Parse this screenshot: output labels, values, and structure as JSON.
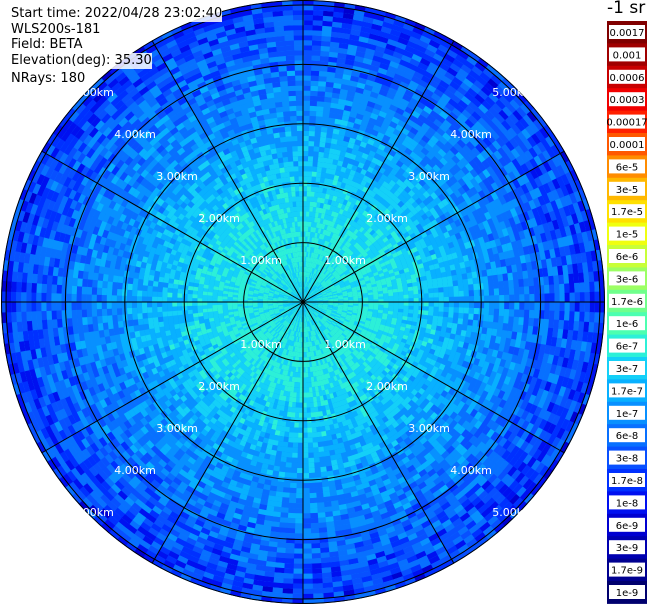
{
  "header": {
    "start_time": "Start time: 2022/04/28 23:02:40",
    "instrument": "WLS200s-181",
    "field": "Field: BETA",
    "elevation": "Elevation(deg): 35.30",
    "nrays": "NRays: 180"
  },
  "colorbar": {
    "unit_label": "-1 sr",
    "ticks": [
      "0.0017",
      "0.001",
      "0.0006",
      "0.0003",
      "0.00017",
      "0.0001",
      "6e-5",
      "3e-5",
      "1.7e-5",
      "1e-5",
      "6e-6",
      "3e-6",
      "1.7e-6",
      "1e-6",
      "6e-7",
      "3e-7",
      "1.7e-7",
      "1e-7",
      "6e-8",
      "3e-8",
      "1.7e-8",
      "1e-8",
      "6e-9",
      "3e-9",
      "1.7e-9",
      "1e-9"
    ],
    "colors": [
      "#800000",
      "#a00000",
      "#c80000",
      "#f00000",
      "#ff2000",
      "#ff5800",
      "#ff8c00",
      "#ffb800",
      "#ffe000",
      "#f0ff10",
      "#c8ff38",
      "#9cff64",
      "#70ff8c",
      "#4cffb0",
      "#2cf0d8",
      "#14d0f8",
      "#08b0ff",
      "#0890ff",
      "#0870ff",
      "#0850ff",
      "#0030ff",
      "#0010f0",
      "#0000d0",
      "#0000b0",
      "#000090",
      "#00006e"
    ]
  },
  "chart_data": {
    "type": "heatmap",
    "projection": "polar (PPI scan)",
    "field": "BETA",
    "elevation_deg": 35.3,
    "nrays": 180,
    "range_rings_km": [
      1,
      2,
      3,
      4,
      5
    ],
    "range_ring_labels": [
      "1.00km",
      "2.00km",
      "3.00km",
      "4.00km",
      "5.00km"
    ],
    "spokes_deg": [
      0,
      30,
      60,
      90,
      120,
      150,
      180,
      210,
      240,
      270,
      300,
      330
    ],
    "max_range_km": 5.0,
    "color_scale": "log",
    "value_range": [
      1e-09,
      0.0017
    ],
    "radial_profile": [
      {
        "range_km": 0.0,
        "beta": 4e-07
      },
      {
        "range_km": 1.0,
        "beta": 5e-07
      },
      {
        "range_km": 2.0,
        "beta": 3e-07
      },
      {
        "range_km": 3.0,
        "beta": 1.2e-07
      },
      {
        "range_km": 4.0,
        "beta": 5e-08
      },
      {
        "range_km": 5.0,
        "beta": 2e-08
      }
    ]
  }
}
